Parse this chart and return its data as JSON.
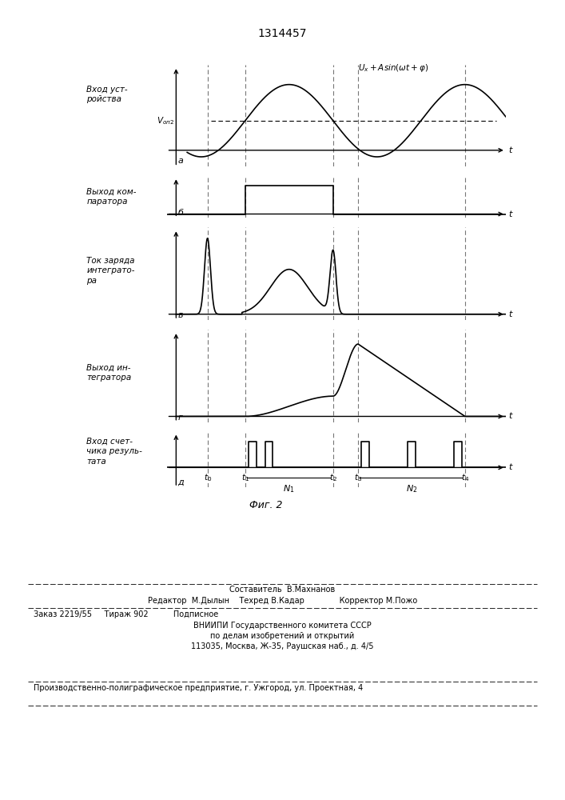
{
  "title": "1314457",
  "fig_width": 7.07,
  "fig_height": 10.0,
  "bg_color": "#ffffff",
  "line_color": "#000000",
  "t0": 1.0,
  "t1": 2.2,
  "t2": 5.0,
  "t3": 5.8,
  "t4": 9.2,
  "tmax": 10.5,
  "footer": {
    "line1_center": "Составитель  В.Махнанов",
    "line2": "Редактор  М.Дылын    Техред В.Кадар              Корректор М.Пожо",
    "line3_left": "Заказ 2219/55     Тираж 902          Подписное",
    "line4_center": "ВНИИПИ Государственного комитета СССР",
    "line5_center": "по делам изобретений и открытий",
    "line6_center": "113035, Москва, Ж-35, Раушская наб., д. 4/5",
    "line7_left": "Производственно-полиграфическое предприятие, г. Ужгород, ул. Проектная, 4"
  }
}
